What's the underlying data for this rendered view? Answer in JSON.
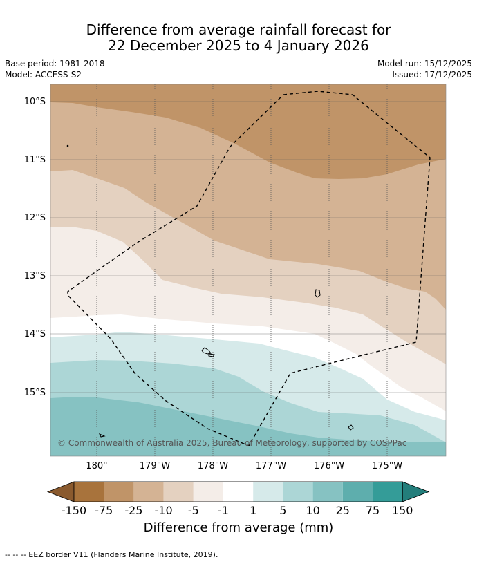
{
  "title": {
    "line1": "Difference from average rainfall forecast for",
    "line2": "22 December 2025 to 4 January 2026"
  },
  "meta": {
    "base_period": "Base period: 1981-2018",
    "model": "Model: ACCESS-S2",
    "model_run": "Model run: 15/12/2025",
    "issued": "Issued: 17/12/2025"
  },
  "map": {
    "lat_labels": [
      "10°S",
      "11°S",
      "12°S",
      "13°S",
      "14°S",
      "15°S"
    ],
    "lon_labels": [
      "180°",
      "179°W",
      "178°W",
      "177°W",
      "176°W",
      "175°W"
    ],
    "copyright": "© Commonwealth of Australia 2025, Bureau of Meteorology, supported by COSPPac",
    "layers": [
      "rainfall-anomaly-contours",
      "eez-border",
      "coastline"
    ]
  },
  "colorbar": {
    "labels": [
      "-150",
      "-75",
      "-25",
      "-10",
      "-5",
      "-1",
      "1",
      "5",
      "10",
      "25",
      "75",
      "150"
    ],
    "colors": [
      "#a8733c",
      "#c09468",
      "#d4b394",
      "#e4d1c0",
      "#f4ede8",
      "#ffffff",
      "#d6eaea",
      "#acd6d6",
      "#86c2c2",
      "#5eaead",
      "#349c98"
    ],
    "end_low_color": "#8a5a2e",
    "end_high_color": "#237e7b",
    "title": "Difference from average (mm)"
  },
  "footnote": "--  --  -- EEZ border V11 (Flanders Marine Institute, 2019).",
  "colors": {
    "grid": "#5a5a5a",
    "eez": "#000000"
  }
}
